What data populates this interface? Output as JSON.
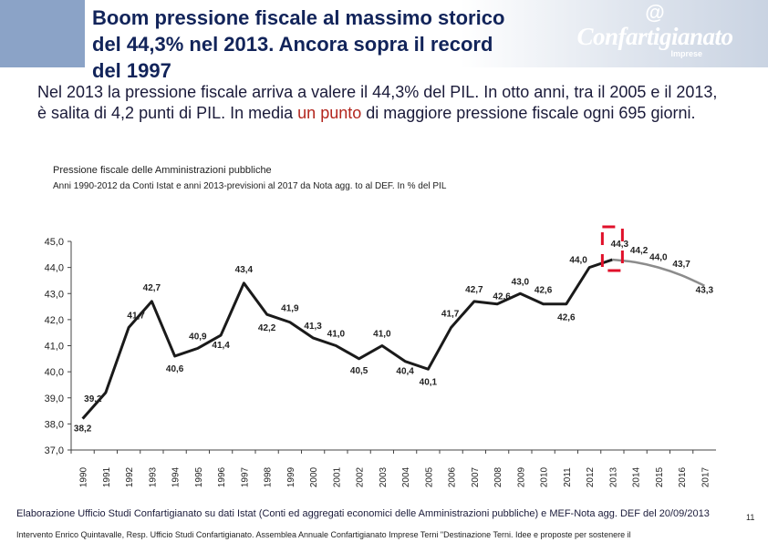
{
  "header": {
    "title": "Boom pressione fiscale al massimo storico del 44,3% nel 2013. Ancora sopra il record del 1997",
    "logo_text": "Confartigianato",
    "logo_sub": "Imprese",
    "logo_symbol": "@"
  },
  "intro": {
    "text_part1": "Nel 2013 la pressione fiscale arriva a valere il 44,3% del PIL. In otto anni, tra il 2005 e il 2013, è salita di 4,2 punti di PIL. In media ",
    "text_highlight": "un punto",
    "text_part2": " di maggiore pressione fiscale ogni 695 giorni."
  },
  "chart_data": {
    "type": "line",
    "title": "Pressione fiscale delle Amministrazioni pubbliche",
    "subtitle": "Anni 1990-2012 da Conti Istat e anni 2013-previsioni al 2017 da Nota agg. to al DEF. In % del PIL",
    "categories": [
      "1990",
      "1991",
      "1992",
      "1993",
      "1994",
      "1995",
      "1996",
      "1997",
      "1998",
      "1999",
      "2000",
      "2001",
      "2002",
      "2003",
      "2004",
      "2005",
      "2006",
      "2007",
      "2008",
      "2009",
      "2010",
      "2011",
      "2012",
      "2013",
      "2014",
      "2015",
      "2016",
      "2017"
    ],
    "series": [
      {
        "values": [
          38.2,
          39.2,
          41.7,
          42.7,
          40.6,
          40.9,
          41.4,
          43.4,
          42.2,
          41.9,
          41.3,
          41.0,
          40.5,
          41.0,
          40.4,
          40.1,
          41.7,
          42.7,
          42.6,
          43.0,
          42.6,
          42.6,
          44.0,
          44.3,
          null,
          null,
          null,
          null
        ],
        "color": "#1a1a1a"
      },
      {
        "values": [
          null,
          null,
          null,
          null,
          null,
          null,
          null,
          null,
          null,
          null,
          null,
          null,
          null,
          null,
          null,
          null,
          null,
          null,
          null,
          null,
          null,
          null,
          null,
          44.3,
          44.2,
          44.0,
          43.7,
          43.3
        ],
        "color": "#8c8c8c"
      }
    ],
    "data_labels": [
      "38,2",
      "39,2",
      "41,7",
      "42,7",
      "40,6",
      "40,9",
      "41,4",
      "43,4",
      "42,2",
      "41,9",
      "41,3",
      "41,0",
      "40,5",
      "41,0",
      "40,4",
      "40,1",
      "41,7",
      "42,7",
      "42,6",
      "43,0",
      "42,6",
      "42,6",
      "44,0",
      "44,3",
      "44,2",
      "44,0",
      "43,7",
      "43,3"
    ],
    "y_ticks": [
      "37,0",
      "38,0",
      "39,0",
      "40,0",
      "41,0",
      "42,0",
      "43,0",
      "44,0",
      "45,0"
    ],
    "ylim": [
      37,
      45
    ],
    "highlight_year": "2013",
    "highlight_color": "#e0102a"
  },
  "footer": {
    "source": "Elaborazione Ufficio Studi Confartigianato su dati Istat (Conti ed aggregati economici delle Amministrazioni pubbliche) e MEF-Nota agg. DEF del 20/09/2013",
    "page_number": "11",
    "event": "Intervento Enrico Quintavalle, Resp. Ufficio Studi Confartigianato. Assemblea Annuale Confartigianato Imprese Terni \"Destinazione Terni. Idee e proposte per sostenere il"
  }
}
